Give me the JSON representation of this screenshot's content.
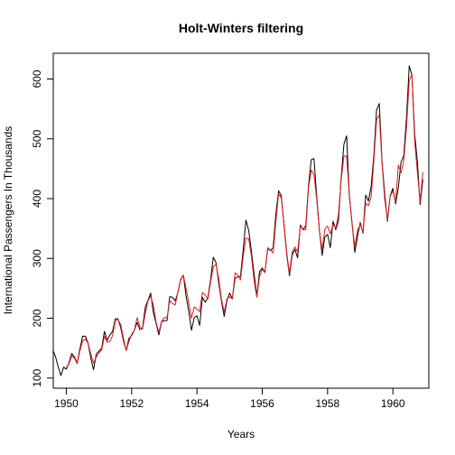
{
  "chart_data": {
    "type": "line",
    "title": "Holt-Winters filtering",
    "xlabel": "Years",
    "ylabel": "International Passengers In Thousands",
    "xlim": [
      1949.6,
      1961.1
    ],
    "ylim": [
      83,
      643
    ],
    "x_ticks": [
      1950,
      1952,
      1954,
      1956,
      1958,
      1960
    ],
    "y_ticks": [
      100,
      200,
      300,
      400,
      500,
      600
    ],
    "grid": false,
    "x_start": 1949.0,
    "x_step": 0.08333333,
    "series": [
      {
        "role": "observed",
        "color": "#000000",
        "values": [
          112,
          118,
          132,
          129,
          121,
          135,
          148,
          148,
          136,
          119,
          104,
          118,
          115,
          126,
          141,
          135,
          125,
          149,
          170,
          170,
          158,
          133,
          114,
          140,
          145,
          150,
          178,
          163,
          172,
          178,
          199,
          199,
          184,
          162,
          146,
          166,
          171,
          180,
          193,
          181,
          183,
          218,
          230,
          242,
          209,
          191,
          172,
          194,
          196,
          196,
          236,
          235,
          229,
          243,
          264,
          272,
          237,
          211,
          180,
          201,
          204,
          188,
          235,
          227,
          234,
          264,
          302,
          293,
          259,
          229,
          203,
          229,
          242,
          233,
          267,
          269,
          270,
          315,
          364,
          347,
          312,
          274,
          237,
          278,
          284,
          277,
          317,
          313,
          318,
          374,
          413,
          405,
          355,
          306,
          271,
          306,
          315,
          301,
          356,
          348,
          355,
          422,
          465,
          467,
          404,
          347,
          305,
          336,
          340,
          318,
          362,
          348,
          363,
          435,
          491,
          505,
          404,
          359,
          310,
          337,
          360,
          342,
          406,
          396,
          420,
          472,
          548,
          559,
          463,
          407,
          362,
          405,
          417,
          391,
          419,
          461,
          472,
          535,
          622,
          606,
          508,
          461,
          390,
          432
        ]
      },
      {
        "role": "fitted",
        "color": "#e41a1c",
        "start_index": 12,
        "values": [
          118,
          124,
          137,
          133,
          124,
          146,
          162,
          165,
          158,
          140,
          125,
          135,
          142,
          147,
          170,
          160,
          161,
          171,
          196,
          198,
          189,
          166,
          146,
          161,
          173,
          180,
          201,
          186,
          182,
          208,
          229,
          237,
          221,
          193,
          176,
          195,
          201,
          201,
          229,
          225,
          222,
          244,
          265,
          272,
          250,
          225,
          200,
          219,
          215,
          211,
          243,
          239,
          232,
          260,
          286,
          290,
          266,
          232,
          210,
          232,
          236,
          232,
          276,
          272,
          264,
          304,
          334,
          333,
          304,
          263,
          235,
          270,
          282,
          276,
          318,
          314,
          309,
          362,
          408,
          401,
          358,
          309,
          275,
          311,
          319,
          311,
          354,
          348,
          348,
          418,
          448,
          440,
          399,
          346,
          315,
          349,
          354,
          341,
          357,
          350,
          374,
          431,
          471,
          471,
          406,
          356,
          320,
          347,
          357,
          344,
          392,
          388,
          403,
          463,
          532,
          540,
          460,
          398,
          365,
          404,
          413,
          394,
          456,
          443,
          463,
          520,
          597,
          608,
          496,
          444,
          395,
          444
        ]
      }
    ]
  }
}
